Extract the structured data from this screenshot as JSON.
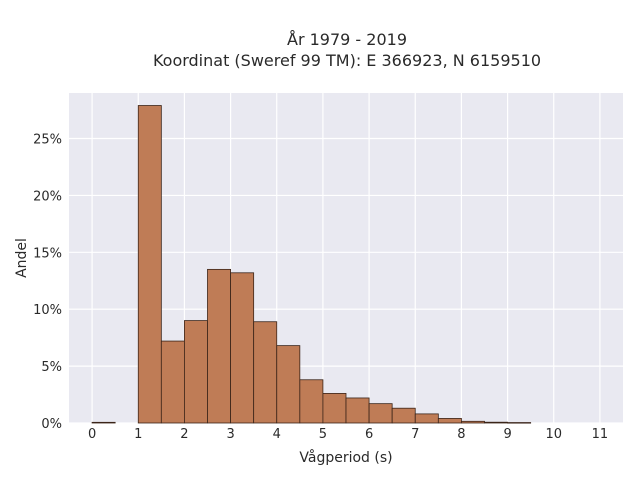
{
  "chart_data": {
    "type": "bar",
    "title_lines": [
      "År 1979 - 2019",
      "Koordinat (Sweref 99 TM): E 366923, N 6159510"
    ],
    "xlabel": "Vågperiod (s)",
    "ylabel": "Andel",
    "xlim": [
      -0.5,
      11.5
    ],
    "ylim": [
      0,
      0.29
    ],
    "x_ticks": [
      0,
      1,
      2,
      3,
      4,
      5,
      6,
      7,
      8,
      9,
      10,
      11
    ],
    "y_ticks": [
      0,
      0.05,
      0.1,
      0.15,
      0.2,
      0.25
    ],
    "y_tick_labels": [
      "0%",
      "5%",
      "10%",
      "15%",
      "20%",
      "25%"
    ],
    "bin_width": 0.5,
    "bins": [
      {
        "x0": 0.0,
        "value": 0.0006
      },
      {
        "x0": 1.0,
        "value": 0.279
      },
      {
        "x0": 1.5,
        "value": 0.072
      },
      {
        "x0": 2.0,
        "value": 0.09
      },
      {
        "x0": 2.5,
        "value": 0.135
      },
      {
        "x0": 3.0,
        "value": 0.132
      },
      {
        "x0": 3.5,
        "value": 0.089
      },
      {
        "x0": 4.0,
        "value": 0.068
      },
      {
        "x0": 4.5,
        "value": 0.038
      },
      {
        "x0": 5.0,
        "value": 0.026
      },
      {
        "x0": 5.5,
        "value": 0.022
      },
      {
        "x0": 6.0,
        "value": 0.017
      },
      {
        "x0": 6.5,
        "value": 0.013
      },
      {
        "x0": 7.0,
        "value": 0.008
      },
      {
        "x0": 7.5,
        "value": 0.004
      },
      {
        "x0": 8.0,
        "value": 0.0015
      },
      {
        "x0": 8.5,
        "value": 0.0007
      },
      {
        "x0": 9.0,
        "value": 0.0004
      }
    ],
    "grid": true,
    "bar_color": "#bf7c56",
    "bar_edge_color": "#3b2418",
    "plot_background": "#e9e9f1",
    "grid_color": "#ffffff"
  }
}
